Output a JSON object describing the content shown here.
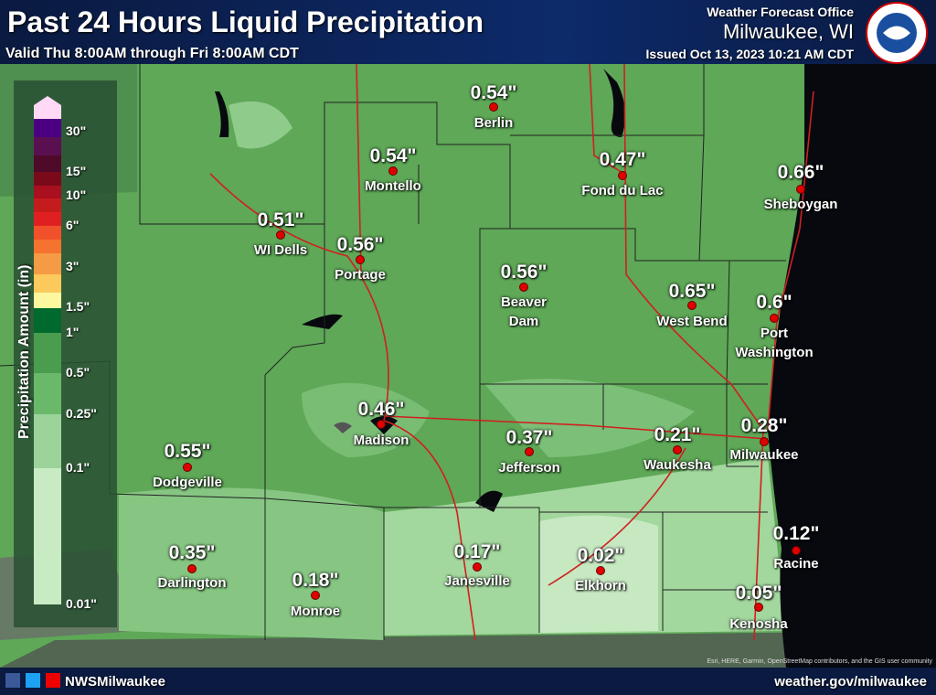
{
  "header": {
    "title": "Past 24 Hours Liquid Precipitation",
    "valid": "Valid Thu 8:00AM through Fri 8:00AM CDT",
    "office": "Weather Forecast Office",
    "location": "Milwaukee, WI",
    "issued": "Issued Oct 13, 2023 10:21 AM CDT"
  },
  "legend": {
    "title": "Precipitation Amount (in)",
    "labels": [
      "30\"",
      "15\"",
      "10\"",
      "6\"",
      "3\"",
      "1.5\"",
      "1\"",
      "0.5\"",
      "0.25\"",
      "0.1\"",
      "0.01\""
    ]
  },
  "stations": [
    {
      "name": "Berlin",
      "amount": "0.54\""
    },
    {
      "name": "Montello",
      "amount": "0.54\""
    },
    {
      "name": "Fond du Lac",
      "amount": "0.47\""
    },
    {
      "name": "Sheboygan",
      "amount": "0.66\""
    },
    {
      "name": "WI Dells",
      "amount": "0.51\""
    },
    {
      "name": "Portage",
      "amount": "0.56\""
    },
    {
      "name": "Beaver Dam",
      "amount": "0.56\""
    },
    {
      "name": "West Bend",
      "amount": "0.65\""
    },
    {
      "name": "Port Washington",
      "amount": "0.6\""
    },
    {
      "name": "Madison",
      "amount": "0.46\""
    },
    {
      "name": "Jefferson",
      "amount": "0.37\""
    },
    {
      "name": "Waukesha",
      "amount": "0.21\""
    },
    {
      "name": "Milwaukee",
      "amount": "0.28\""
    },
    {
      "name": "Dodgeville",
      "amount": "0.55\""
    },
    {
      "name": "Darlington",
      "amount": "0.35\""
    },
    {
      "name": "Monroe",
      "amount": "0.18\""
    },
    {
      "name": "Janesville",
      "amount": "0.17\""
    },
    {
      "name": "Elkhorn",
      "amount": "0.02\""
    },
    {
      "name": "Racine",
      "amount": "0.12\""
    },
    {
      "name": "Kenosha",
      "amount": "0.05\""
    }
  ],
  "attribution": "Esri, HERE, Garmin, OpenStreetMap contributors, and the GIS user community",
  "footer": {
    "social": "NWSMilwaukee",
    "website": "weather.gov/milwaukee"
  }
}
